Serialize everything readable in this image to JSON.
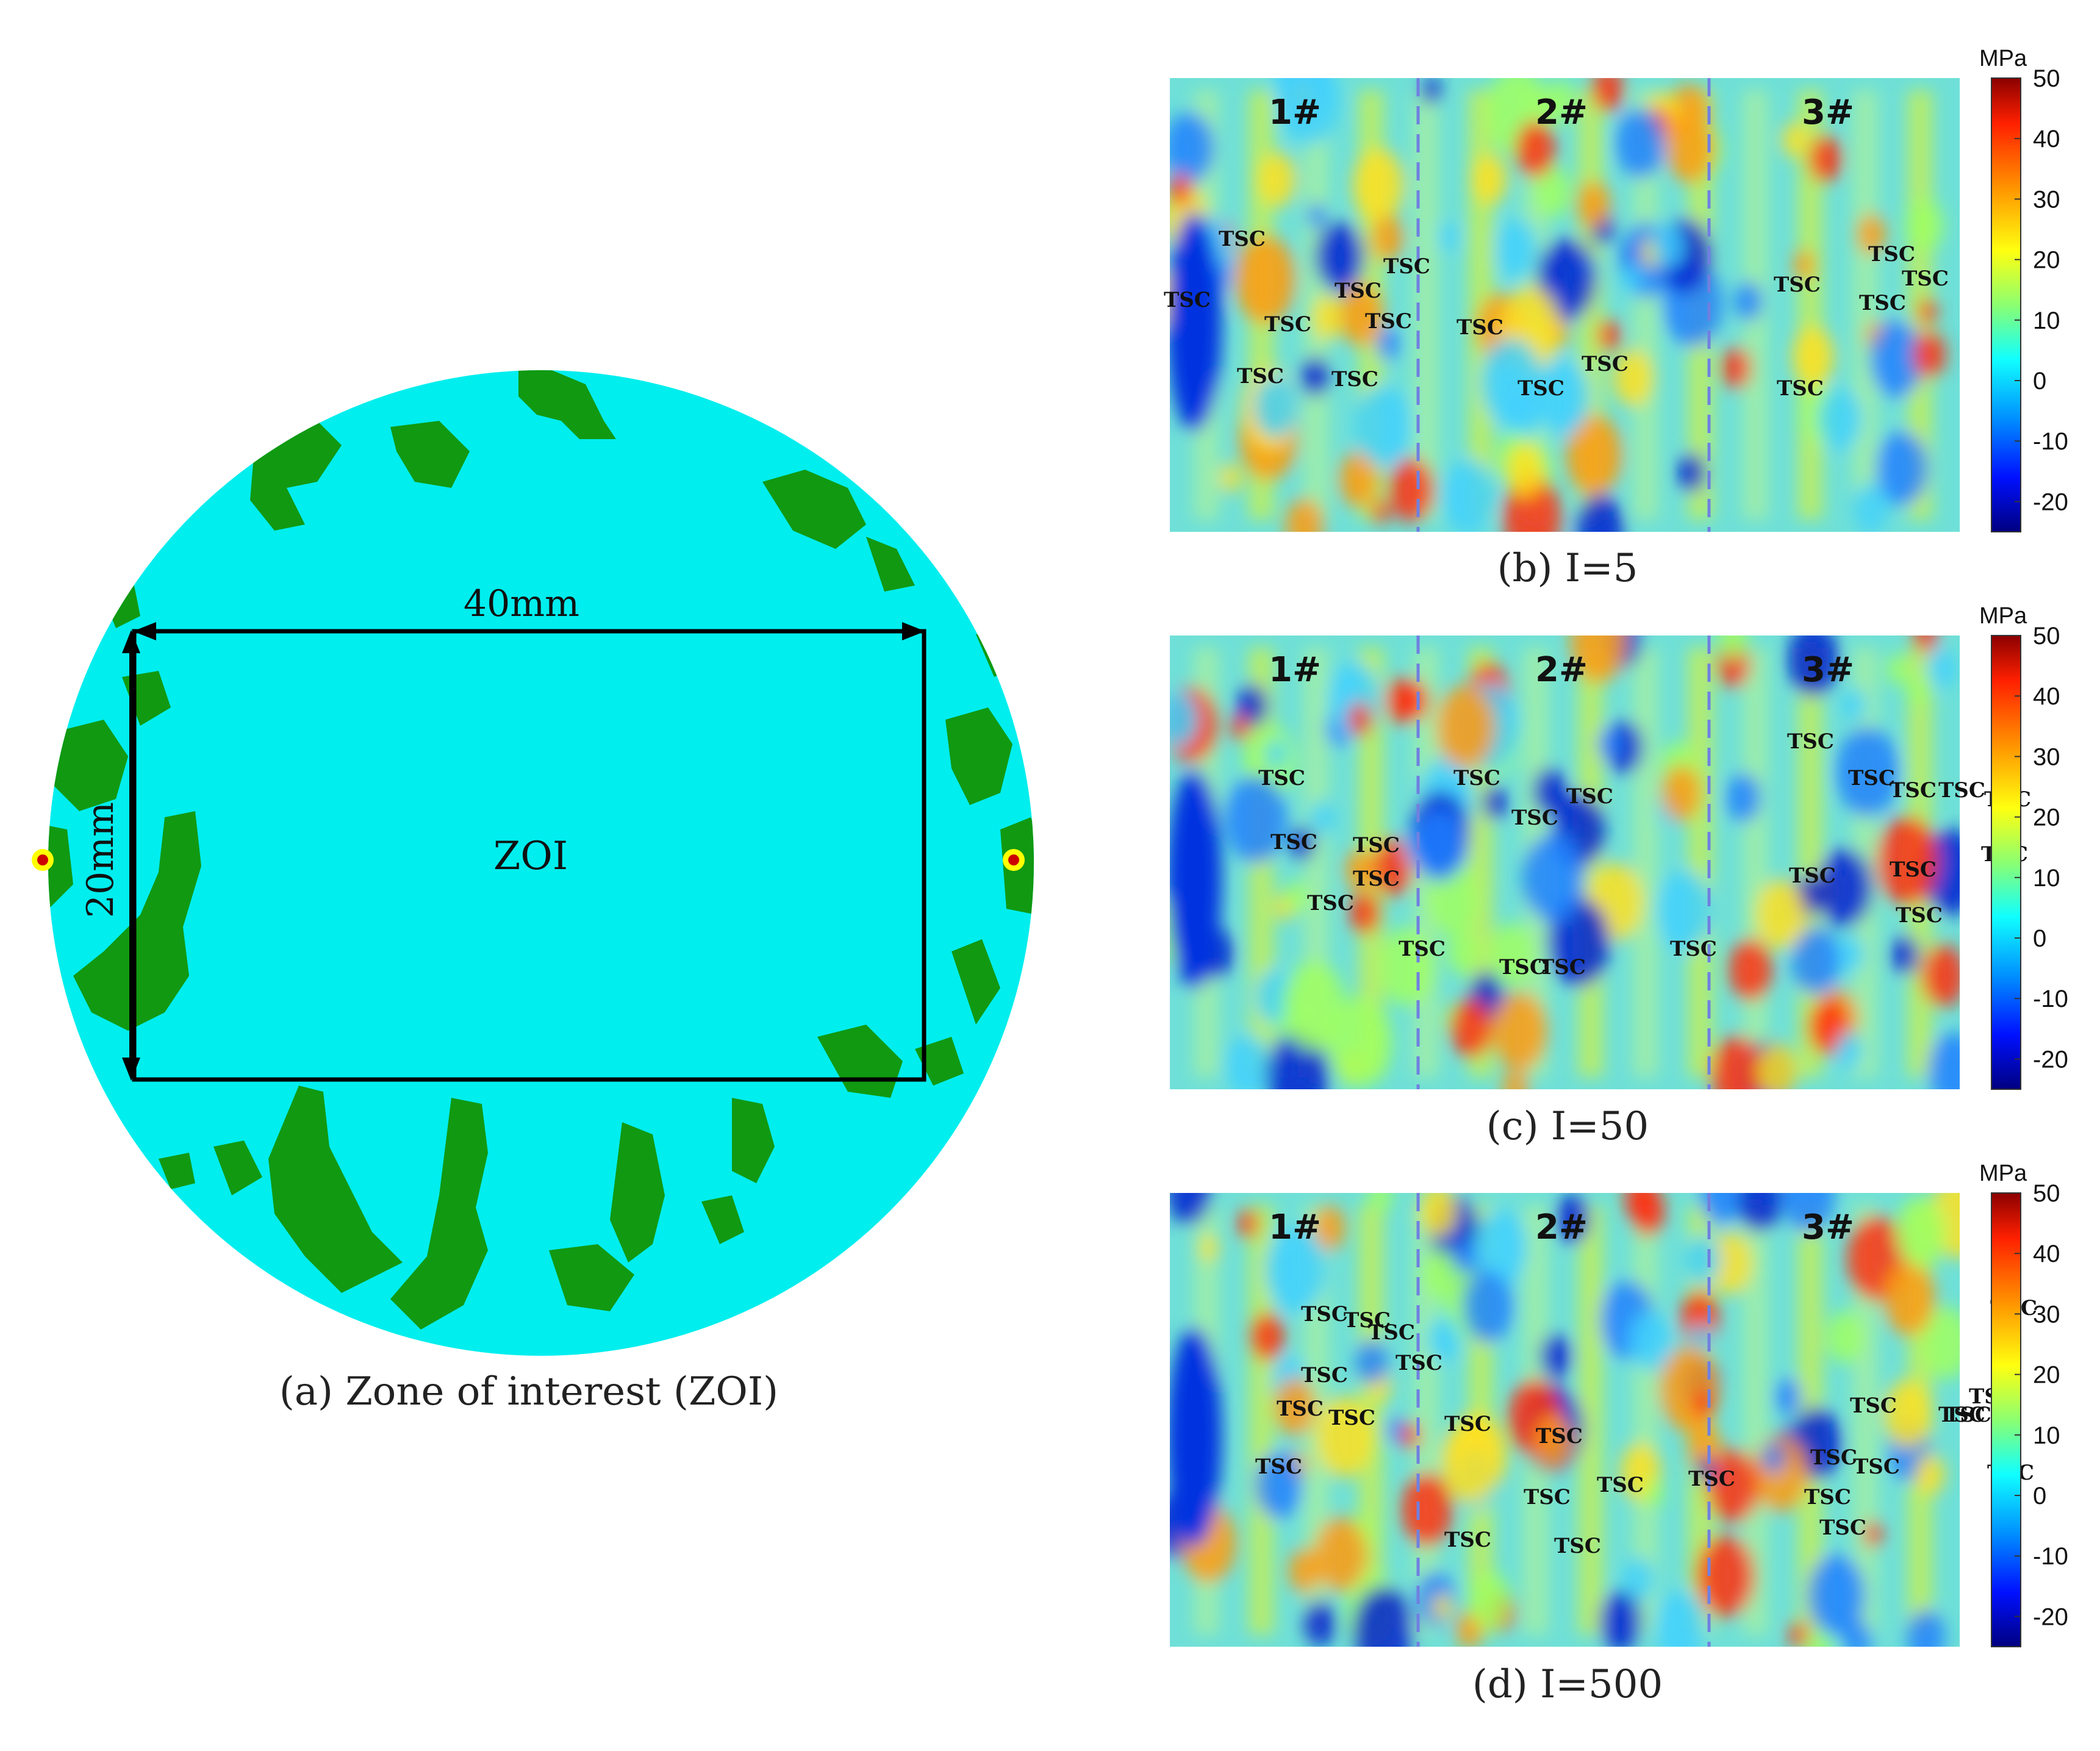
{
  "panel_a": {
    "caption": "(a) Zone of interest (ZOI)",
    "width_label": "40mm",
    "height_label": "20mm",
    "zoi_label": "ZOI",
    "colors": {
      "background": "#00eeee",
      "patch": "#119911",
      "frame": "#000000"
    }
  },
  "colorbar": {
    "unit": "MPa",
    "ticks": [
      "50",
      "40",
      "30",
      "20",
      "10",
      "0",
      "-10",
      "-20"
    ],
    "range": [
      -25,
      50
    ]
  },
  "stress_maps": [
    {
      "caption": "(b) I=5",
      "zones": [
        "1#",
        "2#",
        "3#"
      ],
      "tsc_labels": [
        "TSC",
        "TSC",
        "TSC",
        "TSC",
        "TSC",
        "TSC",
        "TSC",
        "TSC",
        "TSC",
        "TSC",
        "TSC",
        "TSC",
        "TSC",
        "TSC",
        "TSC",
        "TSC"
      ]
    },
    {
      "caption": "(c) I=50",
      "zones": [
        "1#",
        "2#",
        "3#"
      ],
      "tsc_labels": [
        "TSC",
        "TSC",
        "TSC",
        "TSC",
        "TSC",
        "TSC",
        "TSC",
        "TSC",
        "TSC",
        "TSC",
        "TSC",
        "TSC",
        "TSC",
        "TSC",
        "TSC",
        "TSC",
        "TSC",
        "TSC",
        "TSC",
        "TSC",
        "TSC"
      ]
    },
    {
      "caption": "(d) I=500",
      "zones": [
        "1#",
        "2#",
        "3#"
      ],
      "tsc_labels": [
        "TSC",
        "TSC",
        "TSC",
        "TSC",
        "TSC",
        "TSC",
        "TSC",
        "TSC",
        "TSC",
        "TSC",
        "TSC",
        "TSC",
        "TSC",
        "TSC",
        "TSC",
        "TSC",
        "TSC",
        "TSC",
        "TSC",
        "TSC",
        "TSC",
        "TSC",
        "TSC",
        "TSC",
        "TSC"
      ]
    }
  ]
}
